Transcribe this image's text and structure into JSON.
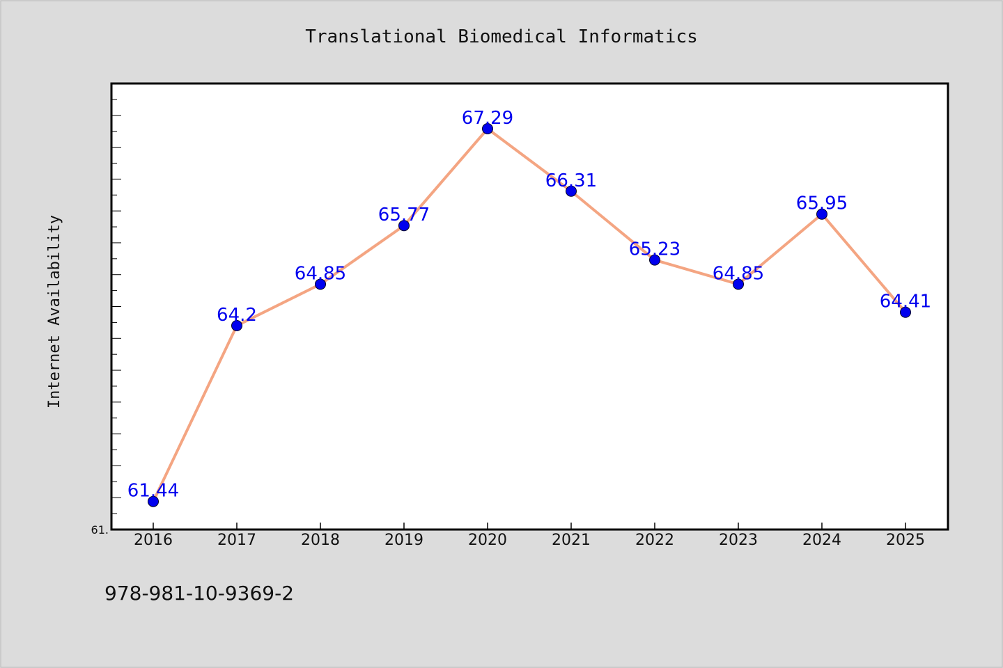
{
  "chart_data": {
    "type": "line",
    "title": "Translational Biomedical Informatics",
    "xlabel": "",
    "ylabel": "Internet Availability",
    "categories": [
      "2016",
      "2017",
      "2018",
      "2019",
      "2020",
      "2021",
      "2022",
      "2023",
      "2024",
      "2025"
    ],
    "series": [
      {
        "values": [
          61.44,
          64.2,
          64.85,
          65.77,
          67.29,
          66.31,
          65.23,
          64.85,
          65.95,
          64.41
        ],
        "labels": [
          "61.44",
          "64.2",
          "64.85",
          "65.77",
          "67.29",
          "66.31",
          "65.23",
          "64.85",
          "65.95",
          "64.41"
        ]
      }
    ],
    "ylim": [
      61.0,
      68.0
    ],
    "y_tick_label": "61.",
    "grid": false,
    "legend": "none",
    "colors": {
      "line": "#f4a582",
      "marker": "#0000ee",
      "label": "#0000ee",
      "plot_bg": "#ffffff",
      "figure_bg": "#dcdcdc"
    }
  },
  "footnote": "978-981-10-9369-2"
}
